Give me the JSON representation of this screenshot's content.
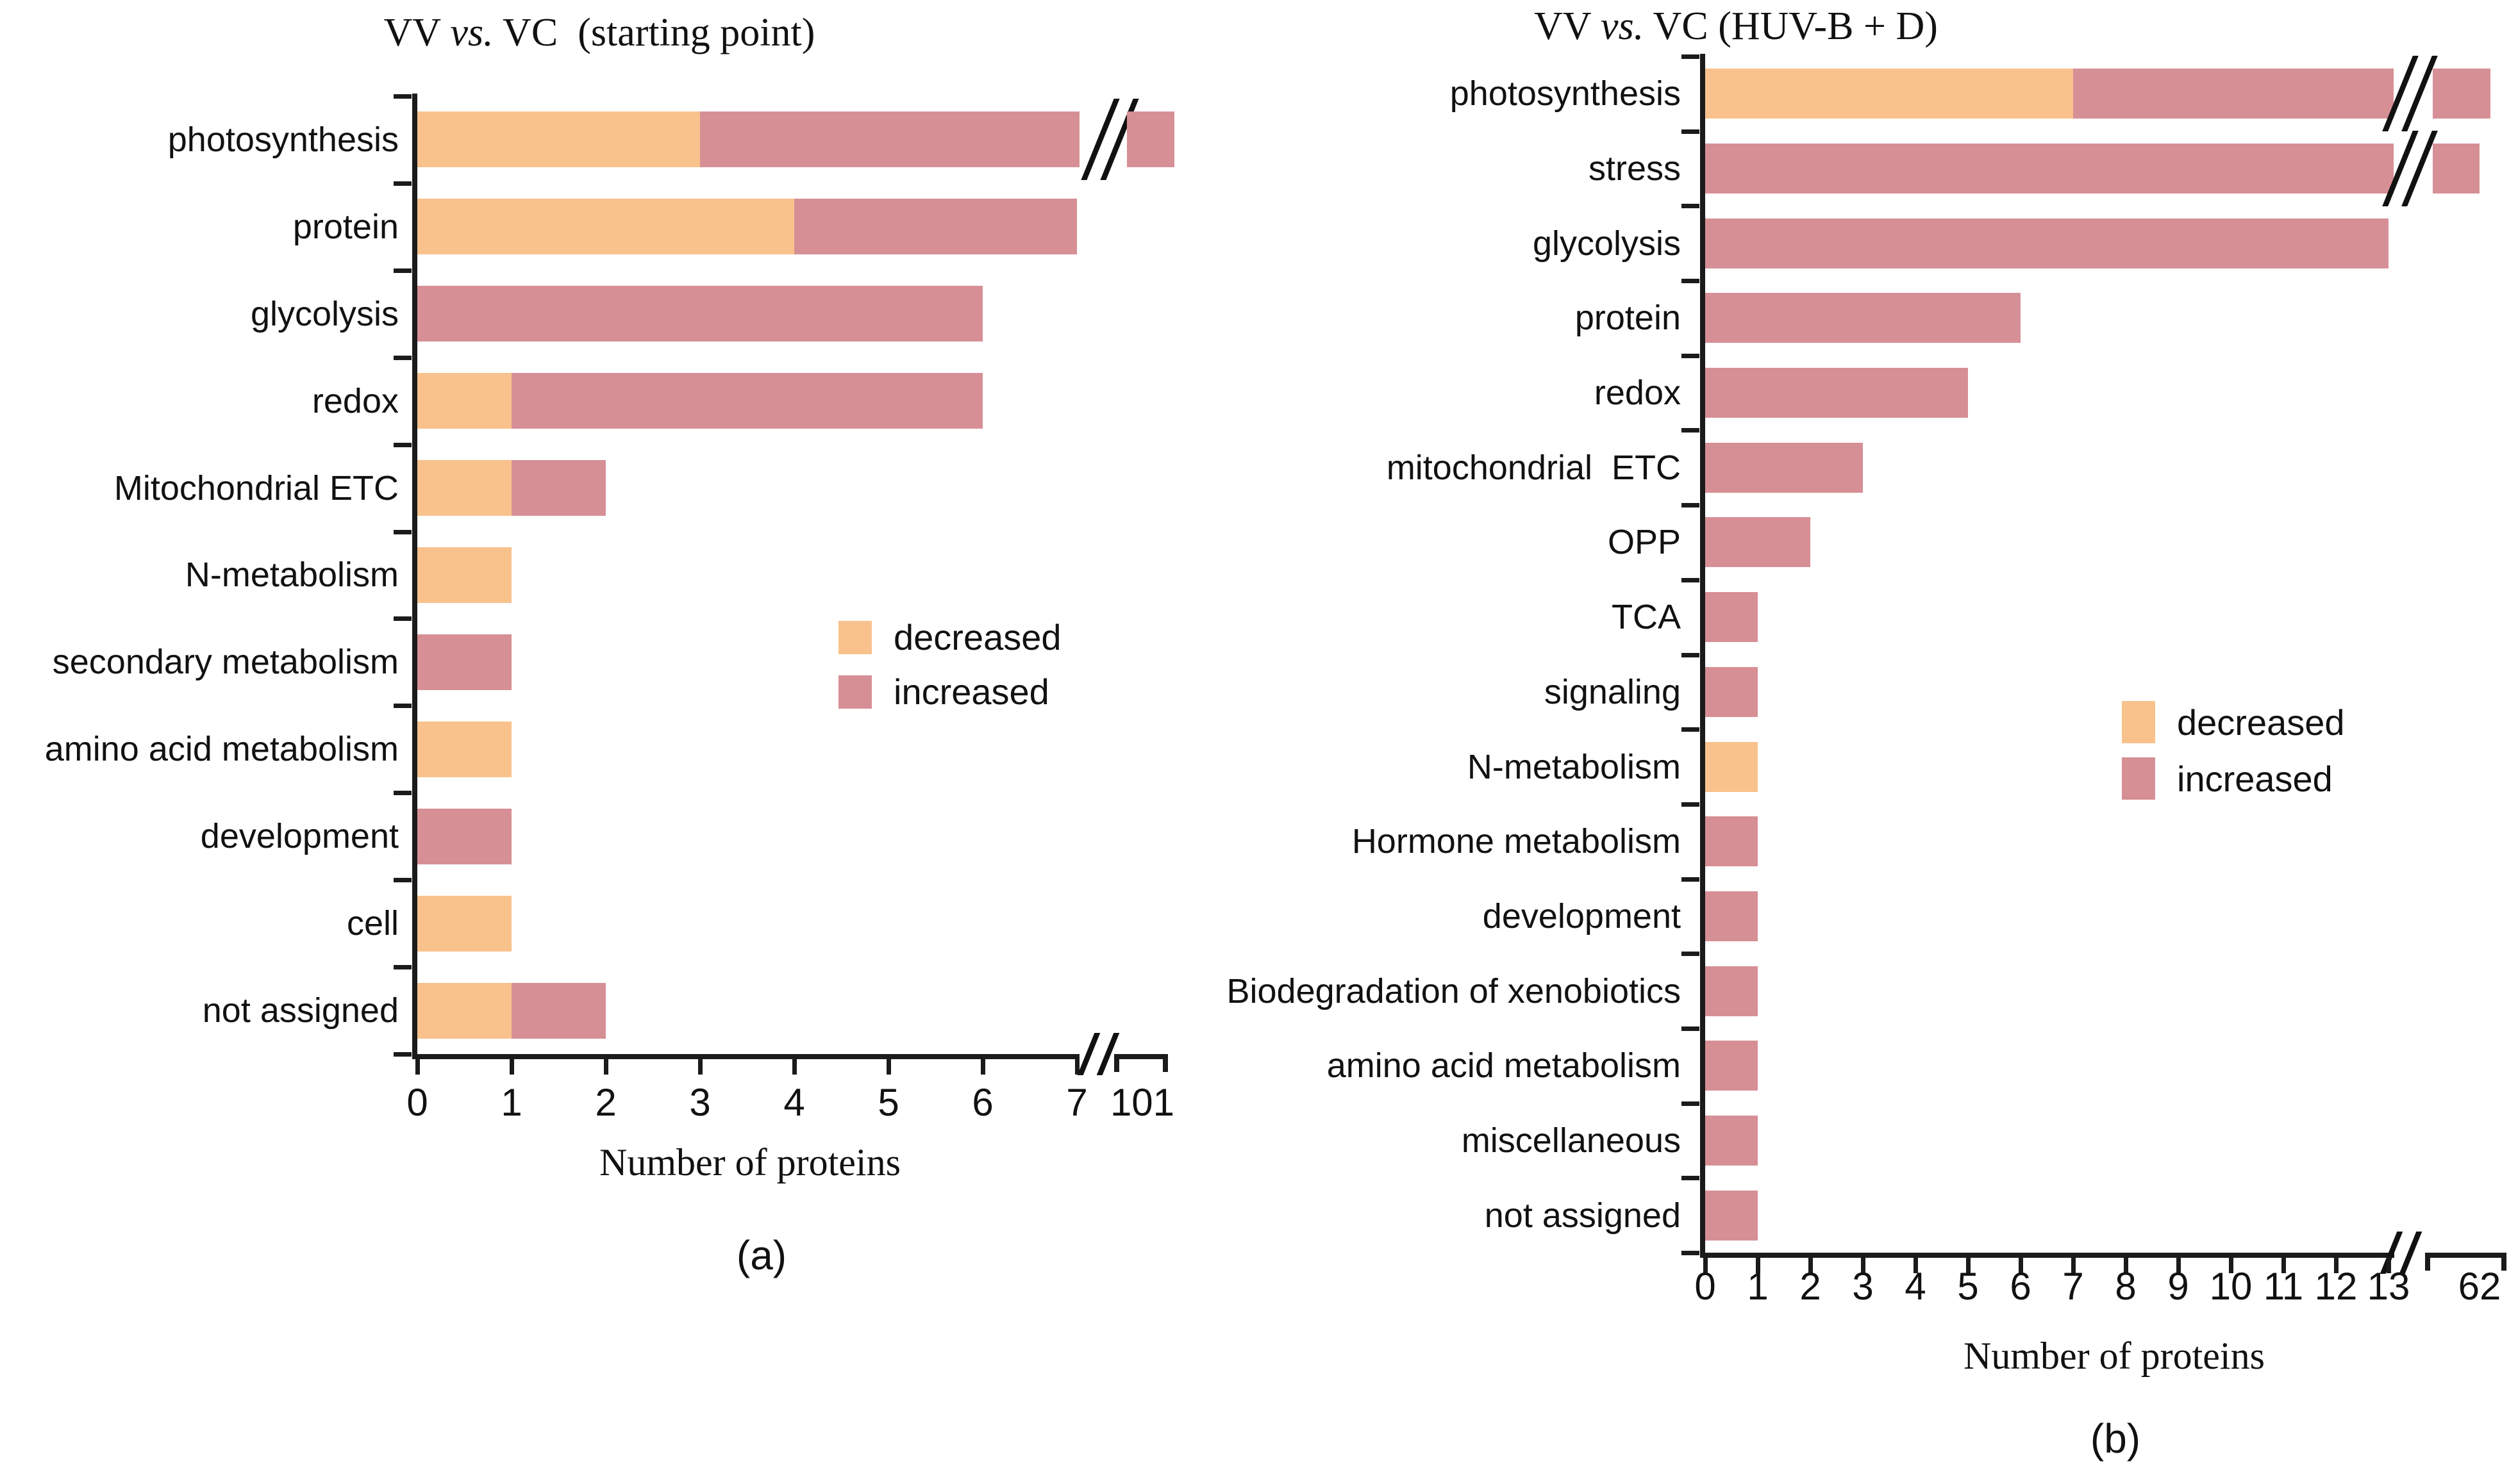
{
  "colors": {
    "decreased": "#F9C28C",
    "increased": "#D78F96",
    "axis": "#1b1b1b",
    "text": "#111111",
    "background": "#ffffff"
  },
  "chart_data": [
    {
      "type": "bar",
      "orientation": "horizontal",
      "stacked": true,
      "grid": false,
      "title": "VV vs. VC  (starting point)",
      "title_pre": "VV ",
      "title_vs": "vs.",
      "title_post": " VC  (starting point)",
      "caption": "(a)",
      "xlabel": "Number of proteins",
      "x_ticks": [
        "0",
        "1",
        "2",
        "3",
        "4",
        "5",
        "6",
        "7"
      ],
      "x_range_main": [
        0,
        7
      ],
      "axis_break": true,
      "axis_end_tick_label": "101",
      "legend_position": "inside-right",
      "legend": [
        {
          "name": "decreased"
        },
        {
          "name": "increased"
        }
      ],
      "categories": [
        "photosynthesis",
        "protein",
        "glycolysis",
        "redox",
        "Mitochondrial ETC",
        "N-metabolism",
        "secondary metabolism",
        "amino acid metabolism",
        "development",
        "cell",
        "not assigned"
      ],
      "series": [
        {
          "name": "decreased",
          "values": [
            3,
            4,
            0,
            1,
            1,
            1,
            0,
            1,
            0,
            1,
            1
          ]
        },
        {
          "name": "increased",
          "values": [
            98,
            3,
            6,
            5,
            1,
            0,
            1,
            0,
            1,
            0,
            1
          ]
        }
      ],
      "bars_exceeding_break": [
        0
      ],
      "note": "photosynthesis bar crosses the axis break and ends at the 101 mark (total 101 proteins; increased count estimated as 101 - 3)"
    },
    {
      "type": "bar",
      "orientation": "horizontal",
      "stacked": true,
      "grid": false,
      "title": "VV vs. VC (HUV-B + D)",
      "title_pre": "VV ",
      "title_vs": "vs.",
      "title_post": " VC (HUV-B + D)",
      "caption": "(b)",
      "xlabel": "Number of proteins",
      "x_ticks": [
        "0",
        "1",
        "2",
        "3",
        "4",
        "5",
        "6",
        "7",
        "8",
        "9",
        "10",
        "11",
        "12",
        "13"
      ],
      "x_range_main": [
        0,
        13
      ],
      "axis_break": true,
      "axis_end_tick_label": "62",
      "legend_position": "inside-right",
      "legend": [
        {
          "name": "decreased"
        },
        {
          "name": "increased"
        }
      ],
      "categories": [
        "photosynthesis",
        "stress",
        "glycolysis",
        "protein",
        "redox",
        "mitochondrial  ETC",
        "OPP",
        "TCA",
        "signaling",
        "N-metabolism",
        "Hormone metabolism",
        "development",
        "Biodegradation of xenobiotics",
        "amino acid metabolism",
        "miscellaneous",
        "not assigned"
      ],
      "series": [
        {
          "name": "decreased",
          "values": [
            7,
            0,
            0,
            0,
            0,
            0,
            0,
            0,
            0,
            1,
            0,
            0,
            0,
            0,
            0,
            0
          ]
        },
        {
          "name": "increased",
          "values": [
            55,
            61,
            13,
            6,
            5,
            3,
            2,
            1,
            1,
            0,
            1,
            1,
            1,
            1,
            1,
            1
          ]
        }
      ],
      "bars_exceeding_break": [
        0,
        1
      ],
      "note": "photosynthesis and stress bars cross the axis break and end near the 62 mark; their increased counts are estimated from the axis end label"
    }
  ]
}
